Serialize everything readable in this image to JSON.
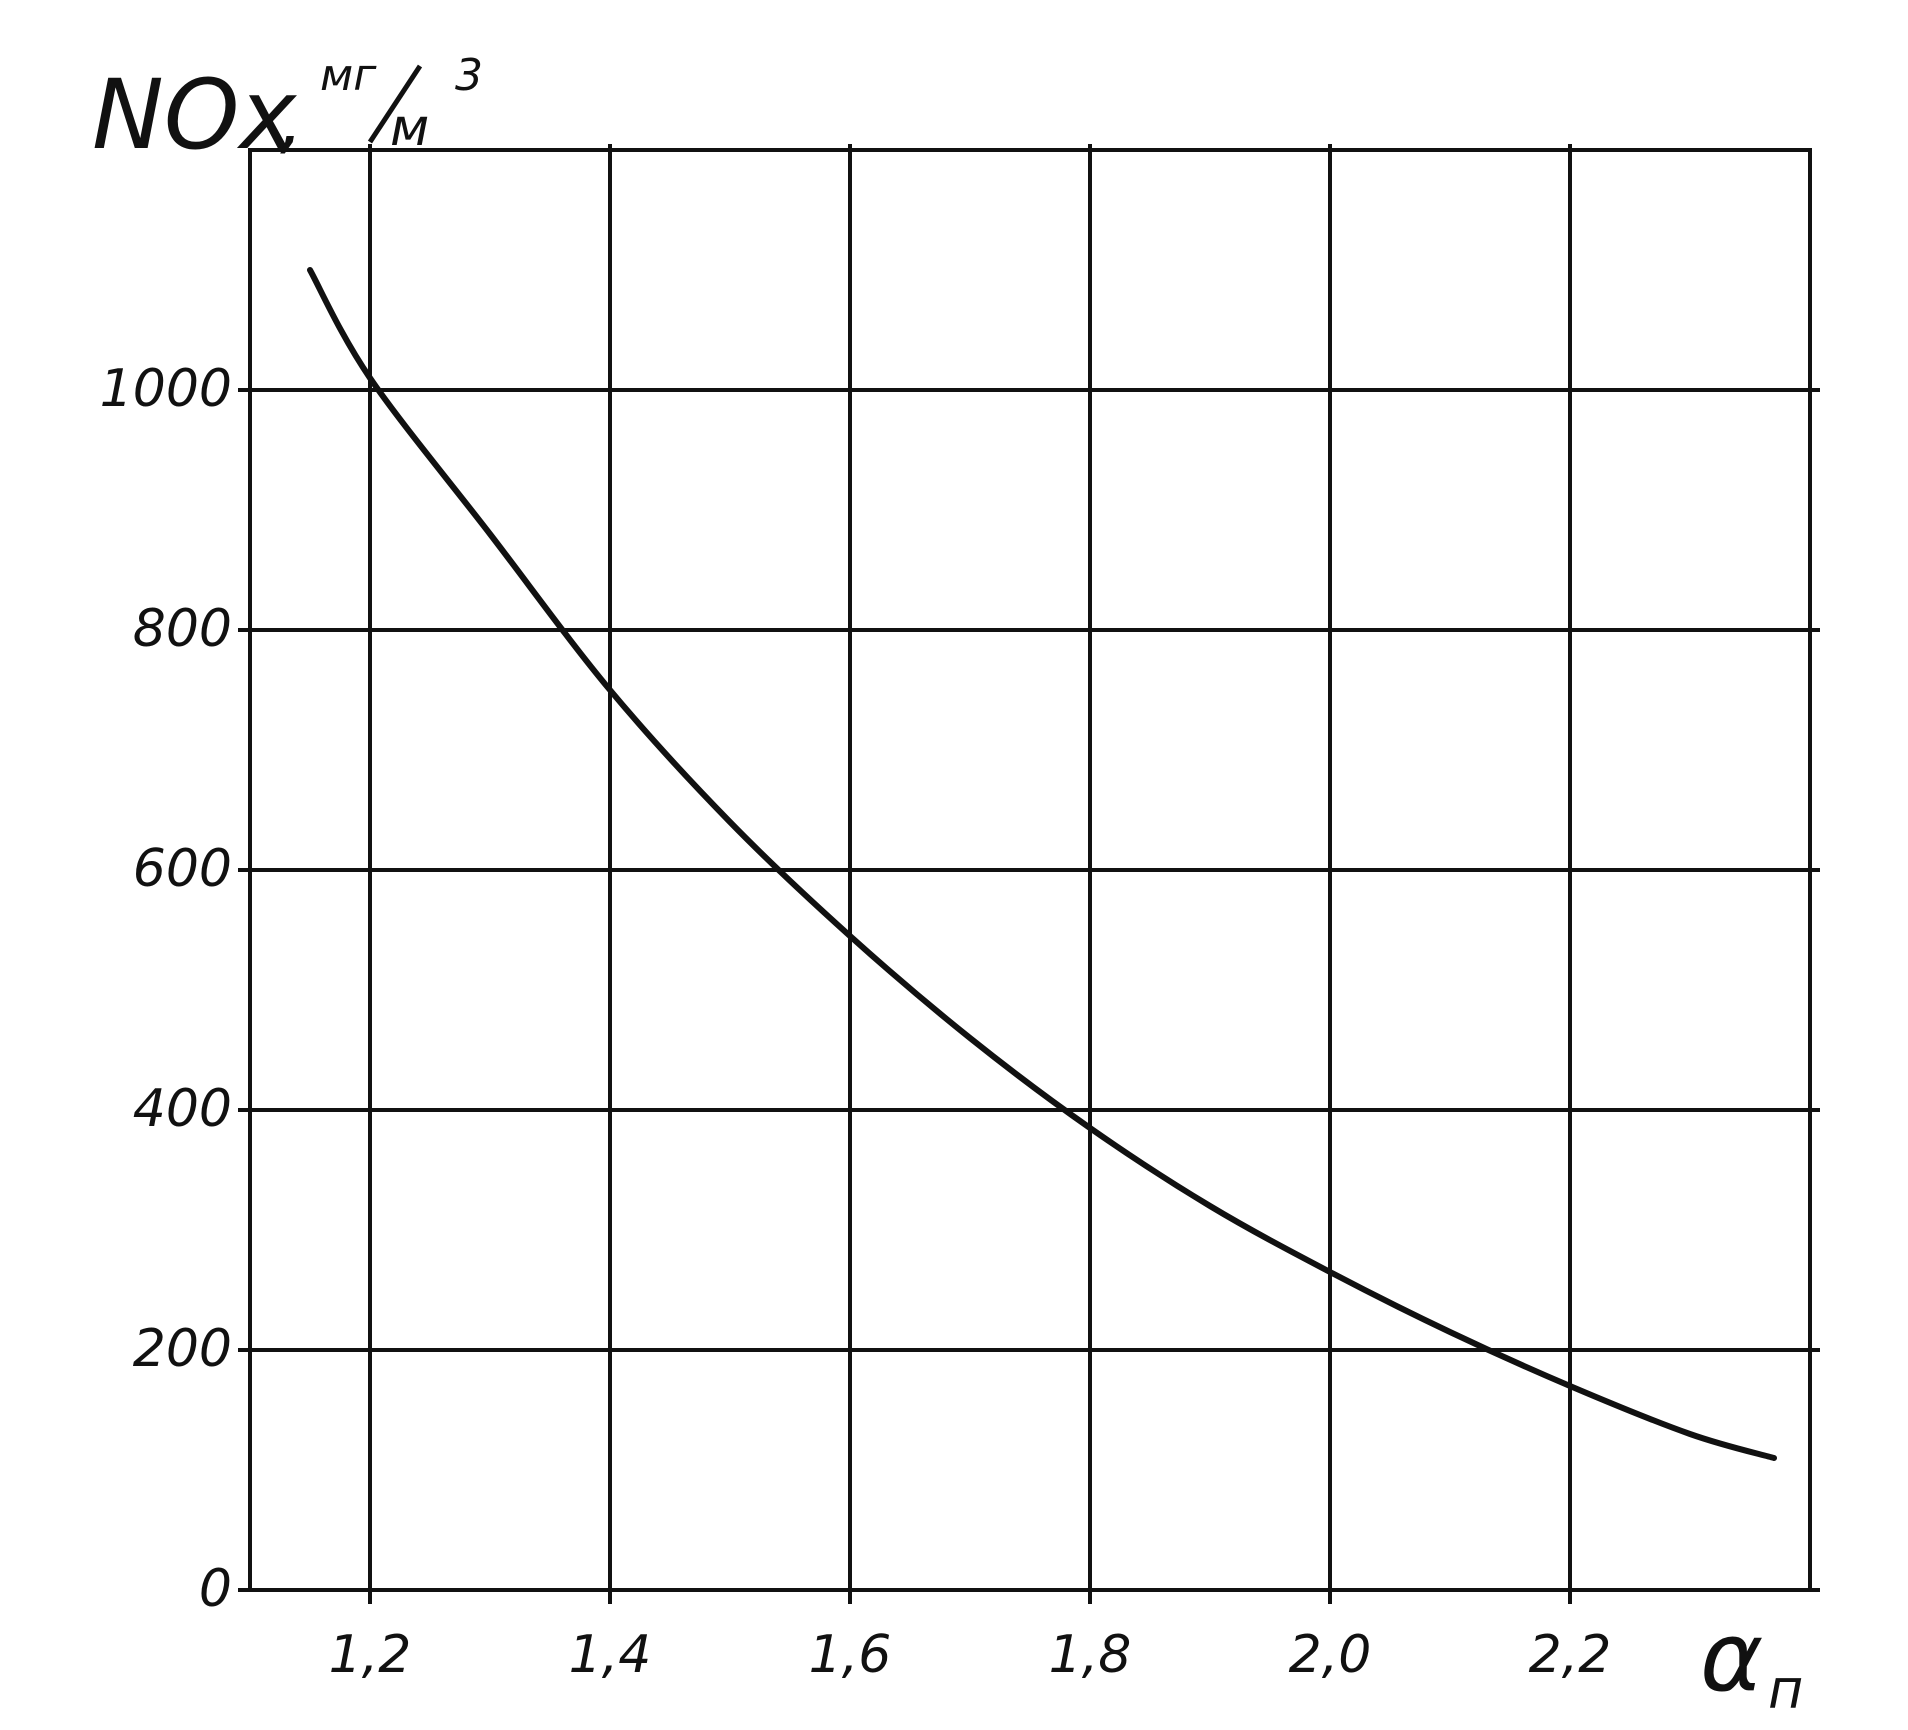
{
  "chart_data": {
    "type": "line",
    "title": "",
    "ylabel": {
      "main": "NOx",
      "separator": ",",
      "unit_numerator": "мг",
      "unit_denominator": "м",
      "unit_exponent": "3"
    },
    "xlabel": {
      "main": "α",
      "subscript": "п"
    },
    "xlim": [
      1.1,
      2.4
    ],
    "ylim": [
      0,
      1200
    ],
    "x_ticks": [
      1.2,
      1.4,
      1.6,
      1.8,
      2.0,
      2.2
    ],
    "x_tick_labels": [
      "1,2",
      "1,4",
      "1,6",
      "1,8",
      "2,0",
      "2,2"
    ],
    "y_ticks": [
      0,
      200,
      400,
      600,
      800,
      1000
    ],
    "y_tick_labels": [
      "0",
      "200",
      "400",
      "600",
      "800",
      "1000"
    ],
    "grid": true,
    "legend": "none",
    "series": [
      {
        "x": [
          1.15,
          1.2,
          1.3,
          1.4,
          1.5,
          1.6,
          1.7,
          1.8,
          1.9,
          2.0,
          2.1,
          2.2,
          2.3,
          2.37
        ],
        "y": [
          1100,
          1010,
          880,
          750,
          640,
          545,
          460,
          385,
          320,
          265,
          215,
          170,
          130,
          110
        ]
      }
    ]
  }
}
